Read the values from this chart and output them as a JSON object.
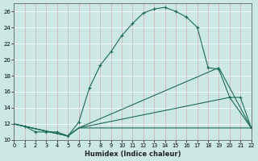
{
  "xlabel": "Humidex (Indice chaleur)",
  "bg_color": "#cce8e5",
  "grid_color": "#e8c8c8",
  "line_color": "#1a6b5a",
  "xlim": [
    0,
    22
  ],
  "ylim": [
    10,
    27
  ],
  "yticks": [
    10,
    12,
    14,
    16,
    18,
    20,
    22,
    24,
    26
  ],
  "xticks": [
    0,
    1,
    2,
    3,
    4,
    5,
    6,
    7,
    8,
    9,
    10,
    11,
    12,
    13,
    14,
    15,
    16,
    17,
    18,
    19,
    20,
    21,
    22
  ],
  "curves": [
    {
      "x": [
        0,
        1,
        2,
        3,
        4,
        5,
        6,
        7,
        8,
        9,
        10,
        11,
        12,
        13,
        14,
        15,
        16,
        17,
        18,
        19,
        20,
        21,
        22
      ],
      "y": [
        12,
        11.7,
        11,
        11,
        11,
        10.5,
        12.2,
        16.5,
        19.3,
        21,
        23,
        24.5,
        25.8,
        26.3,
        26.5,
        26.0,
        25.3,
        24.0,
        19.0,
        18.8,
        15.3,
        15.3,
        11.5
      ],
      "marker": "+"
    },
    {
      "x": [
        0,
        5,
        6,
        22
      ],
      "y": [
        12,
        10.5,
        11.5,
        11.5
      ],
      "marker": null
    },
    {
      "x": [
        0,
        5,
        6,
        20,
        22
      ],
      "y": [
        12,
        10.5,
        11.5,
        15.3,
        11.5
      ],
      "marker": null
    },
    {
      "x": [
        0,
        5,
        6,
        19,
        22
      ],
      "y": [
        12,
        10.5,
        11.5,
        19.0,
        11.5
      ],
      "marker": null
    }
  ]
}
